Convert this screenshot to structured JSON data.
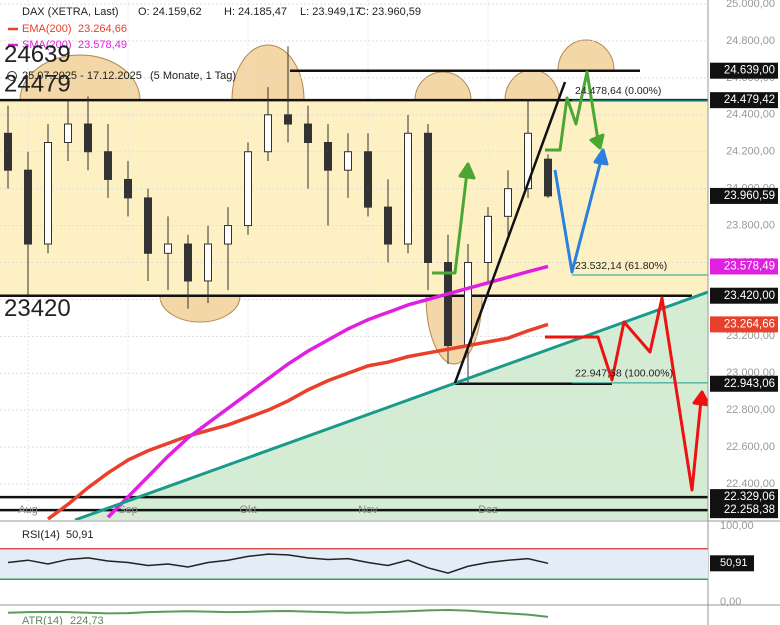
{
  "chart_data": {
    "type": "candlestick",
    "title": "DAX (XETRA, Last)",
    "ohlc_labels": [
      "O: 24.159,62",
      "H: 24.185,47",
      "L: 23.949,17",
      "C: 23.960,59"
    ],
    "range_label": "25.07.2025 - 17.12.2025",
    "range_note": "(5 Monate, 1 Tag)",
    "categories": [
      null,
      "Aug",
      null,
      null,
      null,
      null,
      "Sep",
      null,
      null,
      null,
      null,
      null,
      "Okt",
      null,
      null,
      null,
      null,
      null,
      "Nov",
      null,
      null,
      null,
      null,
      null,
      "Dez",
      null,
      null,
      null
    ],
    "open": [
      24300,
      24100,
      23700,
      24250,
      24350,
      24200,
      24050,
      23950,
      23650,
      23700,
      23500,
      23700,
      23800,
      24200,
      24400,
      24350,
      24250,
      24100,
      24200,
      23900,
      23700,
      24300,
      23600,
      23150,
      23600,
      23850,
      24000,
      24159.62
    ],
    "high": [
      24450,
      24200,
      24350,
      24480,
      24500,
      24350,
      24150,
      24000,
      23850,
      23750,
      23800,
      23900,
      24250,
      24550,
      24771,
      24450,
      24350,
      24300,
      24300,
      24050,
      24400,
      24350,
      23750,
      23700,
      23900,
      24100,
      24479,
      24185.47
    ],
    "low": [
      24000,
      23420,
      23650,
      24150,
      24100,
      23950,
      23850,
      23500,
      23450,
      23350,
      23380,
      23450,
      23750,
      24150,
      24250,
      24000,
      23800,
      23950,
      23850,
      23600,
      23650,
      23450,
      23050,
      22940,
      23500,
      23750,
      23950,
      23949.17
    ],
    "close": [
      24100,
      23700,
      24250,
      24350,
      24200,
      24050,
      23950,
      23650,
      23700,
      23500,
      23700,
      23800,
      24200,
      24400,
      24350,
      24250,
      24100,
      24200,
      23900,
      23700,
      24300,
      23600,
      23150,
      23600,
      23850,
      24000,
      24300,
      23960.59
    ],
    "series": [
      {
        "name": "EMA(200)",
        "value_label": "23.264,66",
        "color": "#e8402a",
        "values": [
          null,
          null,
          22210,
          22290,
          22380,
          22460,
          22530,
          22580,
          22620,
          22660,
          22690,
          22720,
          22760,
          22800,
          22850,
          22910,
          22960,
          23000,
          23040,
          23060,
          23090,
          23110,
          23130,
          23150,
          23170,
          23190,
          23230,
          23264.66
        ]
      },
      {
        "name": "SMA(200)",
        "value_label": "23.578,49",
        "color": "#e020e0",
        "values": [
          null,
          null,
          null,
          null,
          null,
          22220,
          22330,
          22440,
          22550,
          22650,
          22730,
          22810,
          22890,
          22970,
          23050,
          23120,
          23180,
          23240,
          23290,
          23330,
          23370,
          23400,
          23430,
          23460,
          23490,
          23520,
          23550,
          23578.49
        ]
      }
    ],
    "ylim": [
      22205,
      25022
    ],
    "yticks": [
      {
        "value": 25000,
        "label": "25.000,00"
      },
      {
        "value": 24800,
        "label": "24.800,00"
      },
      {
        "value": 24600,
        "label": "24.600,00"
      },
      {
        "value": 24400,
        "label": "24.400,00"
      },
      {
        "value": 24200,
        "label": "24.200,00"
      },
      {
        "value": 24000,
        "label": "24.000,00"
      },
      {
        "value": 23800,
        "label": "23.800,00"
      },
      {
        "value": 23600,
        "label": "23.600,00"
      },
      {
        "value": 23400,
        "label": "23.400,00"
      },
      {
        "value": 23200,
        "label": "23.200,00"
      },
      {
        "value": 23000,
        "label": "23.000,00"
      },
      {
        "value": 22800,
        "label": "22.800,00"
      },
      {
        "value": 22600,
        "label": "22.600,00"
      },
      {
        "value": 22400,
        "label": "22.400,00"
      }
    ],
    "grid": true,
    "price_tags": [
      {
        "value": 24639,
        "label": "24.639,00",
        "color": "#111111"
      },
      {
        "value": 24479.42,
        "label": "24.479,42",
        "color": "#111111"
      },
      {
        "value": 23960.59,
        "label": "23.960,59",
        "color": "#111111"
      },
      {
        "value": 23578.49,
        "label": "23.578,49",
        "color": "#e020e0"
      },
      {
        "value": 23420,
        "label": "23.420,00",
        "color": "#111111"
      },
      {
        "value": 23264.66,
        "label": "23.264,66",
        "color": "#e8402a"
      },
      {
        "value": 22943.06,
        "label": "22.943,06",
        "color": "#111111"
      },
      {
        "value": 22329.06,
        "label": "22.329,06",
        "color": "#111111"
      },
      {
        "value": 22258.38,
        "label": "22.258,38",
        "color": "#111111"
      }
    ],
    "level_labels": [
      {
        "value": 24639,
        "label": "24639"
      },
      {
        "value": 24479,
        "label": "24479"
      },
      {
        "value": 23420,
        "label": "23420"
      }
    ],
    "fib_labels": [
      {
        "value": 24478.64,
        "label": "24.478,64 (0.00%)"
      },
      {
        "value": 23532.14,
        "label": "23.532,14 (61.80%)"
      },
      {
        "value": 22947.58,
        "label": "22.947,58 (100.00%)"
      }
    ],
    "rsi": {
      "name": "RSI(14)",
      "value_label": "50,91",
      "values": [
        52,
        55,
        50,
        56,
        58,
        54,
        52,
        48,
        50,
        46,
        52,
        55,
        60,
        63,
        62,
        58,
        56,
        57,
        52,
        48,
        55,
        45,
        38,
        47,
        52,
        55,
        57,
        50.91
      ],
      "ylim": [
        0,
        100
      ],
      "yticks": [
        {
          "value": 100,
          "label": "100,00"
        },
        {
          "value": 0,
          "label": "0,00"
        }
      ],
      "upper": 70,
      "lower": 30
    },
    "atr": {
      "name": "ATR(14)",
      "value_label": "224,73",
      "values": [
        238,
        240,
        241,
        240,
        238,
        236,
        237,
        240,
        242,
        243,
        242,
        240,
        241,
        243,
        244,
        242,
        240,
        238,
        239,
        241,
        243,
        246,
        247,
        245,
        240,
        236,
        232,
        224.73
      ],
      "ylim": [
        150,
        260
      ]
    }
  }
}
